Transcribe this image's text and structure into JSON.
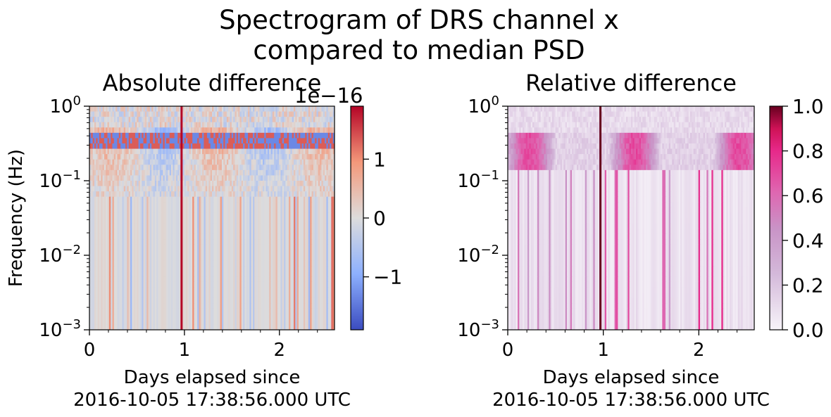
{
  "suptitle_line1": "Spectrogram of DRS channel x",
  "suptitle_line2": "compared to median PSD",
  "chart_data": [
    {
      "type": "heatmap",
      "title": "Absolute difference",
      "ylabel": "Frequency (Hz)",
      "xlabel_line1": "Days elapsed since",
      "xlabel_line2": "2016-10-05 17:38:56.000 UTC",
      "xlim": [
        0,
        2.58
      ],
      "ylim": [
        0.001,
        1
      ],
      "yscale": "log",
      "x_ticks": [
        0,
        1,
        2
      ],
      "x_tick_labels": [
        "0",
        "1",
        "2"
      ],
      "y_ticks": [
        0.001,
        0.01,
        0.1,
        1
      ],
      "y_tick_labels": [
        {
          "base": "10",
          "exp": "−3"
        },
        {
          "base": "10",
          "exp": "−2"
        },
        {
          "base": "10",
          "exp": "−1"
        },
        {
          "base": "10",
          "exp": "0"
        }
      ],
      "colormap": "coolwarm",
      "colorbar": {
        "range": [
          -1.9,
          1.9
        ],
        "ticks": [
          -1,
          0,
          1
        ],
        "tick_labels": [
          "−1",
          "0",
          "1"
        ],
        "scale_label": "1e−16"
      },
      "spike_day": 0.97
    },
    {
      "type": "heatmap",
      "title": "Relative difference",
      "xlabel_line1": "Days elapsed since",
      "xlabel_line2": "2016-10-05 17:38:56.000 UTC",
      "xlim": [
        0,
        2.58
      ],
      "ylim": [
        0.001,
        1
      ],
      "yscale": "log",
      "x_ticks": [
        0,
        1,
        2
      ],
      "x_tick_labels": [
        "0",
        "1",
        "2"
      ],
      "y_ticks": [
        0.001,
        0.01,
        0.1,
        1
      ],
      "y_tick_labels": [
        {
          "base": "10",
          "exp": "−3"
        },
        {
          "base": "10",
          "exp": "−2"
        },
        {
          "base": "10",
          "exp": "−1"
        },
        {
          "base": "10",
          "exp": "0"
        }
      ],
      "colormap": "PuRd",
      "colorbar": {
        "range": [
          0,
          1
        ],
        "ticks": [
          0,
          0.2,
          0.4,
          0.6,
          0.8,
          1.0
        ],
        "tick_labels": [
          "0.0",
          "0.2",
          "0.4",
          "0.6",
          "0.8",
          "1.0"
        ]
      },
      "spike_day": 0.97
    }
  ]
}
